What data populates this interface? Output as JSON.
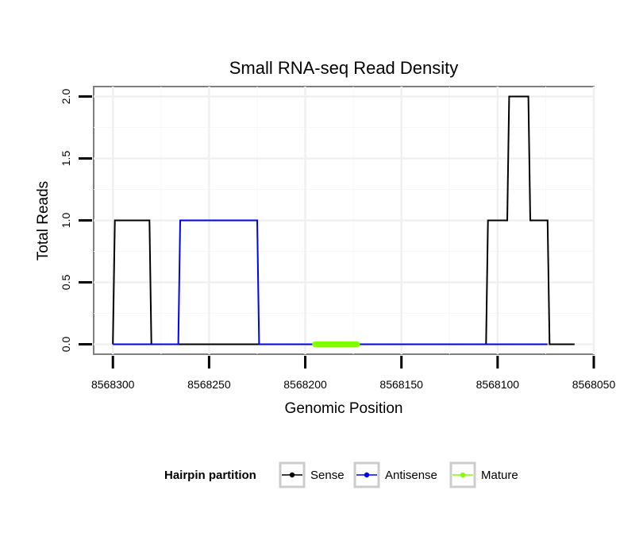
{
  "chart_data": {
    "type": "line",
    "title": "Small RNA-seq Read Density",
    "xlabel": "Genomic Position",
    "ylabel": "Total Reads",
    "x_reversed": true,
    "xlim": [
      8568310,
      8568050
    ],
    "ylim": [
      -0.08,
      2.08
    ],
    "x_ticks": [
      8568300,
      8568250,
      8568200,
      8568150,
      8568100,
      8568050
    ],
    "x_tick_labels": [
      "8568300",
      "8568250",
      "8568200",
      "8568150",
      "8568100",
      "8568050"
    ],
    "y_ticks": [
      0.0,
      0.5,
      1.0,
      1.5,
      2.0
    ],
    "y_tick_labels": [
      "0.0",
      "0.5",
      "1.0",
      "1.5",
      "2.0"
    ],
    "grid": true,
    "legend": {
      "title": "Hairpin partition",
      "position": "bottom",
      "entries": [
        "Sense",
        "Antisense",
        "Mature"
      ]
    },
    "series": [
      {
        "name": "Sense",
        "color": "#000000",
        "x": [
          8568300,
          8568299,
          8568281,
          8568280,
          8568259,
          8568258,
          8568196,
          8568195,
          8568106,
          8568105,
          8568095,
          8568094,
          8568084,
          8568083,
          8568074,
          8568073,
          8568060
        ],
        "y": [
          0,
          1,
          1,
          0,
          0,
          0,
          0,
          0,
          0,
          1,
          1,
          2,
          2,
          1,
          1,
          0,
          0
        ]
      },
      {
        "name": "Antisense",
        "color": "#0000ff",
        "x": [
          8568300,
          8568266,
          8568265,
          8568225,
          8568224,
          8568105,
          8568074
        ],
        "y": [
          0,
          0,
          1,
          1,
          0,
          0,
          0
        ]
      },
      {
        "name": "Mature",
        "color": "#7fff00",
        "x": [
          8568195,
          8568173
        ],
        "y": [
          0,
          0
        ]
      }
    ]
  }
}
